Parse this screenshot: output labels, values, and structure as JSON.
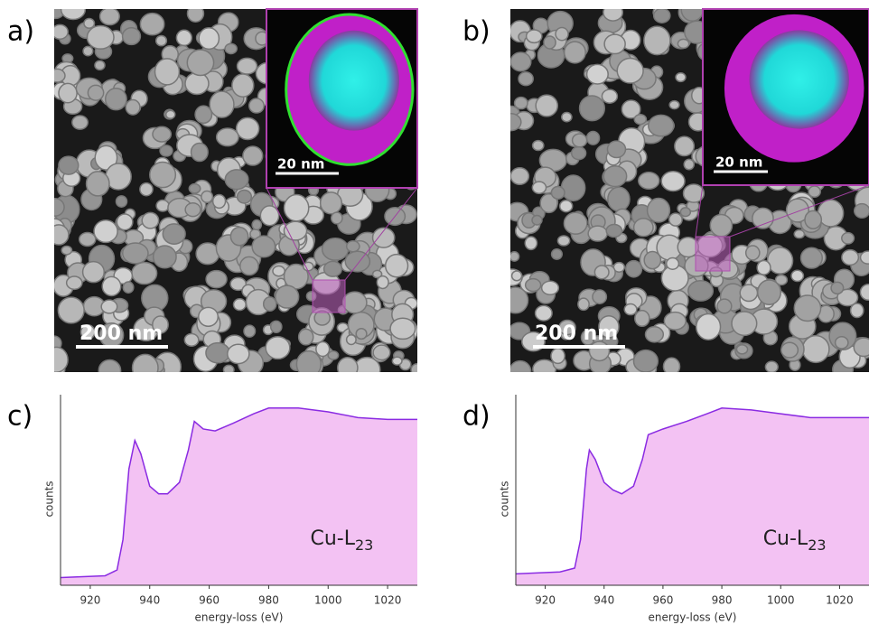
{
  "panels": [
    {
      "label": "a)",
      "scale_bar": "200 nm",
      "inset_scale_bar": "20 nm"
    },
    {
      "label": "b)",
      "scale_bar": "200 nm",
      "inset_scale_bar": "20 nm"
    }
  ],
  "chart_data": [
    {
      "type": "area",
      "panel_label": "c)",
      "xlabel": "energy-loss (eV)",
      "ylabel": "counts",
      "annotation": "Cu-L",
      "annotation_subscript": "23",
      "color": "#8a2be2",
      "fill": "#f3c2f3",
      "xlim": [
        910,
        1030
      ],
      "xticks": [
        920,
        940,
        960,
        980,
        1000,
        1020
      ],
      "ylim": [
        0,
        100
      ],
      "x": [
        910,
        925,
        929,
        931,
        933,
        935,
        937,
        940,
        943,
        946,
        950,
        953,
        955,
        958,
        962,
        968,
        975,
        980,
        990,
        1000,
        1010,
        1020,
        1030
      ],
      "values": [
        4,
        5,
        8,
        24,
        61,
        76,
        69,
        52,
        48,
        48,
        54,
        71,
        86,
        82,
        81,
        85,
        90,
        93,
        93,
        91,
        88,
        87,
        87
      ]
    },
    {
      "type": "area",
      "panel_label": "d)",
      "xlabel": "energy-loss (eV)",
      "ylabel": "counts",
      "annotation": "Cu-L",
      "annotation_subscript": "23",
      "color": "#8a2be2",
      "fill": "#f3c2f3",
      "xlim": [
        910,
        1030
      ],
      "xticks": [
        920,
        940,
        960,
        980,
        1000,
        1020
      ],
      "ylim": [
        0,
        100
      ],
      "x": [
        910,
        925,
        930,
        932,
        934,
        935,
        937,
        940,
        943,
        946,
        950,
        953,
        955,
        960,
        968,
        975,
        980,
        990,
        1000,
        1010,
        1020,
        1030
      ],
      "values": [
        6,
        7,
        9,
        24,
        61,
        71,
        66,
        54,
        50,
        48,
        52,
        66,
        79,
        82,
        86,
        90,
        93,
        92,
        90,
        88,
        88,
        88
      ]
    }
  ]
}
